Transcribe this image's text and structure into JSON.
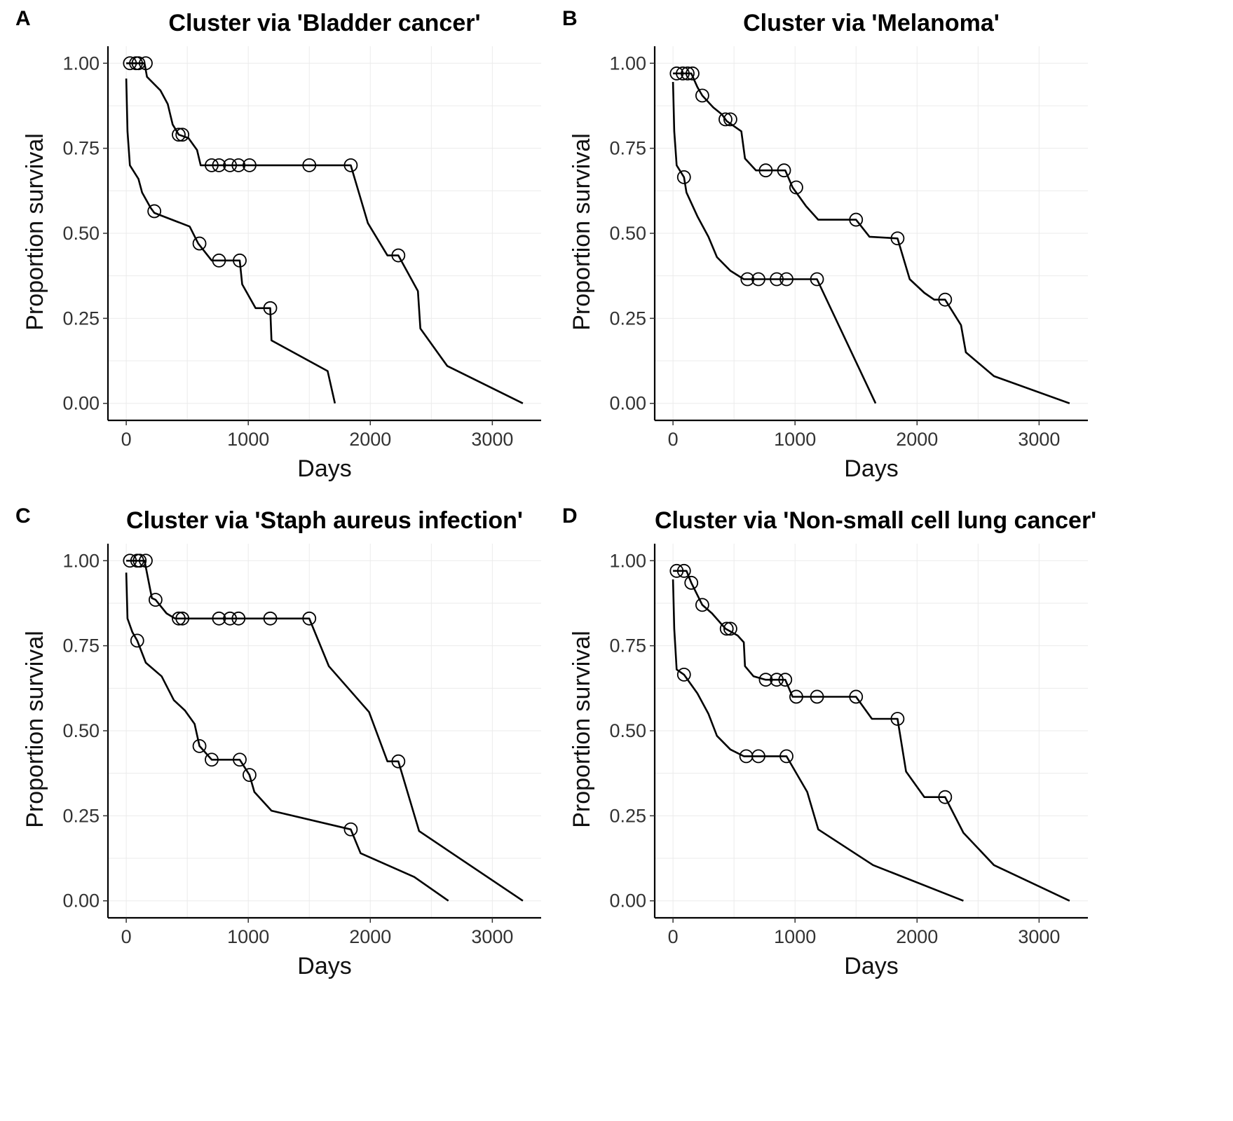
{
  "chart_data": [
    {
      "type": "line",
      "panel": "A",
      "title": "Cluster via 'Bladder cancer'",
      "xlabel": "Days",
      "ylabel": "Proportion survival",
      "xlim": [
        -150,
        3400
      ],
      "ylim": [
        -0.05,
        1.05
      ],
      "xticks": [
        0,
        1000,
        2000,
        3000
      ],
      "xtick_labels": [
        "0",
        "1000",
        "2000",
        "3000"
      ],
      "yticks": [
        0,
        0.25,
        0.5,
        0.75,
        1
      ],
      "ytick_labels": [
        "0.00",
        "0.25",
        "0.50",
        "0.75",
        "1.00"
      ],
      "grid": true,
      "series": [
        {
          "line": [
            [
              0,
              0.955
            ],
            [
              10,
              0.8
            ],
            [
              30,
              0.7
            ],
            [
              100,
              0.66
            ],
            [
              130,
              0.62
            ],
            [
              200,
              0.575
            ],
            [
              230,
              0.56
            ],
            [
              520,
              0.52
            ],
            [
              590,
              0.47
            ],
            [
              700,
              0.42
            ],
            [
              930,
              0.42
            ],
            [
              950,
              0.35
            ],
            [
              1060,
              0.28
            ],
            [
              1180,
              0.28
            ],
            [
              1190,
              0.185
            ],
            [
              1650,
              0.095
            ],
            [
              1710,
              0.0
            ]
          ],
          "censored": [
            [
              230,
              0.565
            ],
            [
              600,
              0.47
            ],
            [
              760,
              0.42
            ],
            [
              930,
              0.42
            ],
            [
              1180,
              0.28
            ]
          ]
        },
        {
          "line": [
            [
              0,
              1.0
            ],
            [
              150,
              1.0
            ],
            [
              170,
              0.96
            ],
            [
              280,
              0.92
            ],
            [
              340,
              0.88
            ],
            [
              380,
              0.82
            ],
            [
              430,
              0.79
            ],
            [
              510,
              0.78
            ],
            [
              580,
              0.745
            ],
            [
              610,
              0.7
            ],
            [
              1840,
              0.7
            ],
            [
              1980,
              0.53
            ],
            [
              2140,
              0.435
            ],
            [
              2230,
              0.435
            ],
            [
              2390,
              0.33
            ],
            [
              2410,
              0.22
            ],
            [
              2630,
              0.11
            ],
            [
              3250,
              0.0
            ]
          ],
          "censored": [
            [
              30,
              1.0
            ],
            [
              80,
              1.0
            ],
            [
              100,
              1.0
            ],
            [
              160,
              1.0
            ],
            [
              430,
              0.79
            ],
            [
              460,
              0.79
            ],
            [
              700,
              0.7
            ],
            [
              760,
              0.7
            ],
            [
              850,
              0.7
            ],
            [
              920,
              0.7
            ],
            [
              1010,
              0.7
            ],
            [
              1500,
              0.7
            ],
            [
              1840,
              0.7
            ],
            [
              2230,
              0.435
            ]
          ]
        }
      ]
    },
    {
      "type": "line",
      "panel": "B",
      "title": "Cluster via 'Melanoma'",
      "xlabel": "Days",
      "ylabel": "Proportion survival",
      "xlim": [
        -150,
        3400
      ],
      "ylim": [
        -0.05,
        1.05
      ],
      "xticks": [
        0,
        1000,
        2000,
        3000
      ],
      "xtick_labels": [
        "0",
        "1000",
        "2000",
        "3000"
      ],
      "yticks": [
        0,
        0.25,
        0.5,
        0.75,
        1
      ],
      "ytick_labels": [
        "0.00",
        "0.25",
        "0.50",
        "0.75",
        "1.00"
      ],
      "grid": true,
      "series": [
        {
          "line": [
            [
              0,
              0.945
            ],
            [
              10,
              0.8
            ],
            [
              30,
              0.7
            ],
            [
              90,
              0.665
            ],
            [
              110,
              0.62
            ],
            [
              200,
              0.55
            ],
            [
              290,
              0.49
            ],
            [
              360,
              0.43
            ],
            [
              470,
              0.39
            ],
            [
              580,
              0.365
            ],
            [
              1180,
              0.365
            ],
            [
              1660,
              0.0
            ]
          ],
          "censored": [
            [
              90,
              0.665
            ],
            [
              610,
              0.365
            ],
            [
              700,
              0.365
            ],
            [
              850,
              0.365
            ],
            [
              930,
              0.365
            ],
            [
              1180,
              0.365
            ]
          ]
        },
        {
          "line": [
            [
              0,
              0.97
            ],
            [
              150,
              0.97
            ],
            [
              200,
              0.93
            ],
            [
              240,
              0.905
            ],
            [
              330,
              0.87
            ],
            [
              400,
              0.85
            ],
            [
              440,
              0.83
            ],
            [
              560,
              0.8
            ],
            [
              590,
              0.72
            ],
            [
              680,
              0.685
            ],
            [
              920,
              0.685
            ],
            [
              980,
              0.635
            ],
            [
              1090,
              0.58
            ],
            [
              1190,
              0.54
            ],
            [
              1500,
              0.54
            ],
            [
              1610,
              0.49
            ],
            [
              1840,
              0.485
            ],
            [
              1940,
              0.365
            ],
            [
              2060,
              0.325
            ],
            [
              2140,
              0.305
            ],
            [
              2230,
              0.305
            ],
            [
              2360,
              0.23
            ],
            [
              2400,
              0.15
            ],
            [
              2630,
              0.08
            ],
            [
              3250,
              0.0
            ]
          ],
          "censored": [
            [
              30,
              0.97
            ],
            [
              80,
              0.97
            ],
            [
              120,
              0.97
            ],
            [
              160,
              0.97
            ],
            [
              240,
              0.905
            ],
            [
              430,
              0.835
            ],
            [
              470,
              0.835
            ],
            [
              760,
              0.685
            ],
            [
              910,
              0.685
            ],
            [
              1010,
              0.635
            ],
            [
              1500,
              0.54
            ],
            [
              1840,
              0.485
            ],
            [
              2230,
              0.305
            ]
          ]
        }
      ]
    },
    {
      "type": "line",
      "panel": "C",
      "title": "Cluster via 'Staph aureus infection'",
      "xlabel": "Days",
      "ylabel": "Proportion survival",
      "xlim": [
        -150,
        3400
      ],
      "ylim": [
        -0.05,
        1.05
      ],
      "xticks": [
        0,
        1000,
        2000,
        3000
      ],
      "xtick_labels": [
        "0",
        "1000",
        "2000",
        "3000"
      ],
      "yticks": [
        0,
        0.25,
        0.5,
        0.75,
        1
      ],
      "ytick_labels": [
        "0.00",
        "0.25",
        "0.50",
        "0.75",
        "1.00"
      ],
      "grid": true,
      "series": [
        {
          "line": [
            [
              0,
              0.965
            ],
            [
              10,
              0.83
            ],
            [
              50,
              0.79
            ],
            [
              90,
              0.765
            ],
            [
              160,
              0.7
            ],
            [
              290,
              0.66
            ],
            [
              390,
              0.59
            ],
            [
              480,
              0.56
            ],
            [
              560,
              0.52
            ],
            [
              600,
              0.455
            ],
            [
              700,
              0.415
            ],
            [
              930,
              0.415
            ],
            [
              1010,
              0.37
            ],
            [
              1050,
              0.32
            ],
            [
              1190,
              0.265
            ],
            [
              1840,
              0.21
            ],
            [
              1920,
              0.14
            ],
            [
              2360,
              0.07
            ],
            [
              2640,
              0.0
            ]
          ],
          "censored": [
            [
              90,
              0.765
            ],
            [
              600,
              0.455
            ],
            [
              700,
              0.415
            ],
            [
              930,
              0.415
            ],
            [
              1010,
              0.37
            ],
            [
              1840,
              0.21
            ]
          ]
        },
        {
          "line": [
            [
              0,
              1.0
            ],
            [
              150,
              1.0
            ],
            [
              210,
              0.89
            ],
            [
              240,
              0.885
            ],
            [
              330,
              0.845
            ],
            [
              400,
              0.83
            ],
            [
              1500,
              0.83
            ],
            [
              1660,
              0.69
            ],
            [
              1990,
              0.555
            ],
            [
              2140,
              0.41
            ],
            [
              2230,
              0.41
            ],
            [
              2400,
              0.205
            ],
            [
              3250,
              0.0
            ]
          ],
          "censored": [
            [
              30,
              1.0
            ],
            [
              90,
              1.0
            ],
            [
              110,
              1.0
            ],
            [
              160,
              1.0
            ],
            [
              240,
              0.885
            ],
            [
              430,
              0.83
            ],
            [
              460,
              0.83
            ],
            [
              760,
              0.83
            ],
            [
              850,
              0.83
            ],
            [
              920,
              0.83
            ],
            [
              1180,
              0.83
            ],
            [
              1500,
              0.83
            ],
            [
              2230,
              0.41
            ]
          ]
        }
      ]
    },
    {
      "type": "line",
      "panel": "D",
      "title": "Cluster via 'Non-small cell lung cancer'",
      "xlabel": "Days",
      "ylabel": "Proportion survival",
      "xlim": [
        -150,
        3400
      ],
      "ylim": [
        -0.05,
        1.05
      ],
      "xticks": [
        0,
        1000,
        2000,
        3000
      ],
      "xtick_labels": [
        "0",
        "1000",
        "2000",
        "3000"
      ],
      "yticks": [
        0,
        0.25,
        0.5,
        0.75,
        1
      ],
      "ytick_labels": [
        "0.00",
        "0.25",
        "0.50",
        "0.75",
        "1.00"
      ],
      "grid": true,
      "series": [
        {
          "line": [
            [
              0,
              0.945
            ],
            [
              10,
              0.8
            ],
            [
              30,
              0.68
            ],
            [
              90,
              0.665
            ],
            [
              200,
              0.61
            ],
            [
              290,
              0.55
            ],
            [
              360,
              0.485
            ],
            [
              470,
              0.445
            ],
            [
              580,
              0.425
            ],
            [
              930,
              0.425
            ],
            [
              1100,
              0.32
            ],
            [
              1190,
              0.21
            ],
            [
              1640,
              0.105
            ],
            [
              2380,
              0.0
            ]
          ],
          "censored": [
            [
              90,
              0.665
            ],
            [
              600,
              0.425
            ],
            [
              700,
              0.425
            ],
            [
              930,
              0.425
            ]
          ]
        },
        {
          "line": [
            [
              0,
              0.97
            ],
            [
              110,
              0.97
            ],
            [
              150,
              0.935
            ],
            [
              240,
              0.87
            ],
            [
              320,
              0.845
            ],
            [
              430,
              0.8
            ],
            [
              530,
              0.78
            ],
            [
              580,
              0.76
            ],
            [
              590,
              0.69
            ],
            [
              660,
              0.66
            ],
            [
              760,
              0.65
            ],
            [
              920,
              0.65
            ],
            [
              980,
              0.6
            ],
            [
              1500,
              0.6
            ],
            [
              1630,
              0.535
            ],
            [
              1840,
              0.535
            ],
            [
              1910,
              0.38
            ],
            [
              2060,
              0.305
            ],
            [
              2230,
              0.305
            ],
            [
              2380,
              0.2
            ],
            [
              2630,
              0.105
            ],
            [
              3250,
              0.0
            ]
          ],
          "censored": [
            [
              30,
              0.97
            ],
            [
              90,
              0.97
            ],
            [
              150,
              0.935
            ],
            [
              240,
              0.87
            ],
            [
              440,
              0.8
            ],
            [
              470,
              0.8
            ],
            [
              760,
              0.65
            ],
            [
              850,
              0.65
            ],
            [
              920,
              0.65
            ],
            [
              1010,
              0.6
            ],
            [
              1180,
              0.6
            ],
            [
              1500,
              0.6
            ],
            [
              1840,
              0.535
            ],
            [
              2230,
              0.305
            ]
          ]
        }
      ]
    }
  ]
}
